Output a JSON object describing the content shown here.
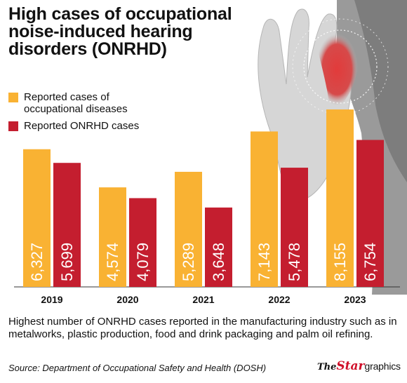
{
  "title": "High cases of occupational noise-induced hearing disorders (ONRHD)",
  "caption": "Highest number of ONRHD cases reported in the manufacturing industry such as in metalworks, plastic production, food and drink packaging and palm oil refining.",
  "source": "Source: Department of Occupational Safety and Health (DOSH)",
  "brand": {
    "the": "The",
    "star": "Star",
    "graphics": "graphics"
  },
  "photo": {
    "subject": "hand-cupped-ear-photo"
  },
  "colors": {
    "occupational": "#f9b233",
    "onrhd": "#c41e2f",
    "ear_highlight": "#e23b3b"
  },
  "chart_data": {
    "type": "bar",
    "categories": [
      "2019",
      "2020",
      "2021",
      "2022",
      "2023"
    ],
    "series": [
      {
        "name": "Reported cases of occupational diseases",
        "values": [
          6327,
          4574,
          5289,
          7143,
          8155
        ],
        "labels": [
          "6,327",
          "4,574",
          "5,289",
          "7,143",
          "8,155"
        ],
        "color": "#f9b233"
      },
      {
        "name": "Reported ONRHD cases",
        "values": [
          5699,
          4079,
          3648,
          5478,
          6754
        ],
        "labels": [
          "5,699",
          "4,079",
          "3,648",
          "5,478",
          "6,754"
        ],
        "color": "#c41e2f"
      }
    ],
    "ylim": [
      0,
      9800
    ],
    "grid": false,
    "legend_position": "top-left"
  }
}
